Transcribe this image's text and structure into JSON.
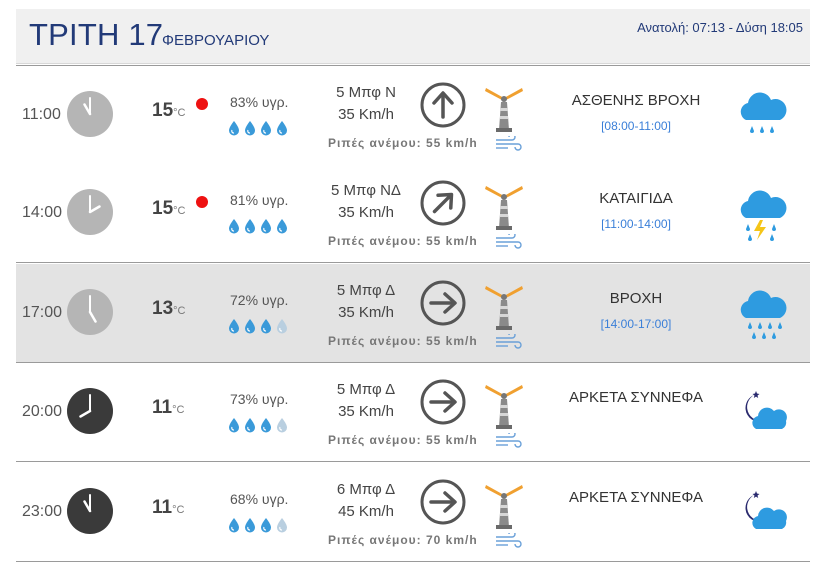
{
  "header": {
    "day": "ΤΡΙΤΗ 17",
    "month": "ΦΕΒΡΟΥΑΡΙΟΥ",
    "sun": "Ανατολή: 07:13  - Δύση 18:05"
  },
  "colors": {
    "title": "#223a78",
    "alert": "#ee1111",
    "drop": "#3a9ad9",
    "range": "#3a7fd8",
    "highlight_row": "#e3e3e3"
  },
  "rows": [
    {
      "time": "11:00",
      "temp": "15",
      "unit": "°C",
      "alert": true,
      "humidity": "83% υγρ.",
      "drops_filled": 4,
      "wind_line1": "5 Μπφ Ν",
      "wind_line2": "35 Km/h",
      "gust": "Ριπές ανέμου: 55 km/h",
      "direction": "N",
      "condition": "ΑΣΘΕΝΗΣ ΒΡΟΧΗ",
      "range": "[08:00-11:00]",
      "icon": "light-rain-icon",
      "clock": "light"
    },
    {
      "time": "14:00",
      "temp": "15",
      "unit": "°C",
      "alert": true,
      "humidity": "81% υγρ.",
      "drops_filled": 4,
      "wind_line1": "5 Μπφ ΝΔ",
      "wind_line2": "35 Km/h",
      "gust": "Ριπές ανέμου: 55 km/h",
      "direction": "NE",
      "condition": "ΚΑΤΑΙΓΙΔΑ",
      "range": "[11:00-14:00]",
      "icon": "thunderstorm-icon",
      "clock": "light"
    },
    {
      "time": "17:00",
      "temp": "13",
      "unit": "°C",
      "alert": false,
      "humidity": "72% υγρ.",
      "drops_filled": 3,
      "wind_line1": "5 Μπφ Δ",
      "wind_line2": "35 Km/h",
      "gust": "Ριπές ανέμου: 55 km/h",
      "direction": "E",
      "condition": "ΒΡΟΧΗ",
      "range": "[14:00-17:00]",
      "icon": "rain-icon",
      "clock": "light",
      "highlight": true
    },
    {
      "time": "20:00",
      "temp": "11",
      "unit": "°C",
      "alert": false,
      "humidity": "73% υγρ.",
      "drops_filled": 3,
      "wind_line1": "5 Μπφ Δ",
      "wind_line2": "35 Km/h",
      "gust": "Ριπές ανέμου: 55 km/h",
      "direction": "E",
      "condition": "ΑΡΚΕΤΑ ΣΥΝΝΕΦΑ",
      "range": "",
      "icon": "night-cloudy-icon",
      "clock": "dark"
    },
    {
      "time": "23:00",
      "temp": "11",
      "unit": "°C",
      "alert": false,
      "humidity": "68% υγρ.",
      "drops_filled": 3,
      "wind_line1": "6 Μπφ Δ",
      "wind_line2": "45 Km/h",
      "gust": "Ριπές ανέμου: 70 km/h",
      "direction": "E",
      "condition": "ΑΡΚΕΤΑ ΣΥΝΝΕΦΑ",
      "range": "",
      "icon": "night-cloudy-icon",
      "clock": "dark"
    }
  ]
}
